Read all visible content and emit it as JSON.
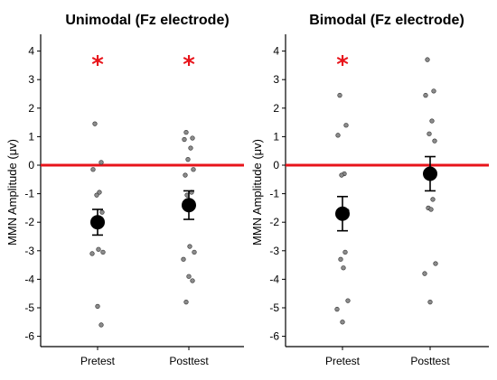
{
  "chart_data": [
    {
      "type": "scatter",
      "title": "Unimodal (Fz electrode)",
      "ylabel": "MMN Amplitude (μv)",
      "xlabel": "",
      "categories": [
        "Pretest",
        "Posttest"
      ],
      "ylim": [
        -6.5,
        4.5
      ],
      "yticks": [
        4,
        3,
        2,
        1,
        0,
        -1,
        -2,
        -3,
        -4,
        -5,
        -6
      ],
      "grid": false,
      "reference_line": {
        "y": 0,
        "color": "#e8141b"
      },
      "significance_marks": [
        {
          "category": "Pretest",
          "label": "*"
        },
        {
          "category": "Posttest",
          "label": "*"
        }
      ],
      "points": [
        [
          1.45,
          0.1,
          -0.15,
          -0.95,
          -1.05,
          -1.65,
          -1.95,
          -2.05,
          -2.1,
          -2.95,
          -3.05,
          -3.1,
          -4.95,
          -5.6
        ],
        [
          1.15,
          0.95,
          0.9,
          0.6,
          0.2,
          -0.15,
          -0.35,
          -0.95,
          -1.05,
          -2.85,
          -3.05,
          -3.3,
          -3.9,
          -4.05,
          -4.8
        ]
      ],
      "means": [
        -2.0,
        -1.4
      ],
      "errors": [
        0.45,
        0.5
      ]
    },
    {
      "type": "scatter",
      "title": "Bimodal (Fz electrode)",
      "ylabel": "MMN Amplitude (μv)",
      "xlabel": "",
      "categories": [
        "Pretest",
        "Posttest"
      ],
      "ylim": [
        -6.5,
        4.5
      ],
      "yticks": [
        4,
        3,
        2,
        1,
        0,
        -1,
        -2,
        -3,
        -4,
        -5,
        -6
      ],
      "grid": false,
      "reference_line": {
        "y": 0,
        "color": "#e8141b"
      },
      "significance_marks": [
        {
          "category": "Pretest",
          "label": "*"
        }
      ],
      "points": [
        [
          2.45,
          1.4,
          1.05,
          -0.3,
          -0.35,
          -1.6,
          -1.8,
          -3.05,
          -3.3,
          -3.6,
          -4.75,
          -5.05,
          -5.5
        ],
        [
          3.7,
          2.6,
          2.45,
          1.55,
          1.1,
          0.85,
          -0.35,
          -1.2,
          -1.5,
          -1.55,
          -3.45,
          -3.8,
          -4.8
        ]
      ],
      "means": [
        -1.7,
        -0.3
      ],
      "errors": [
        0.6,
        0.6
      ]
    }
  ]
}
